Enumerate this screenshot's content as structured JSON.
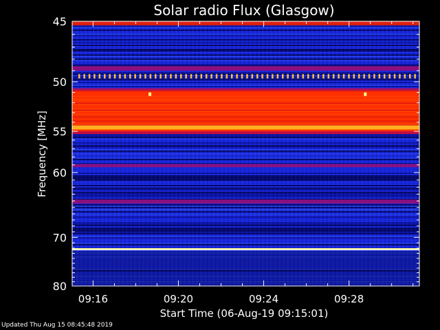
{
  "chart_data": {
    "type": "heatmap",
    "title": "Solar radio Flux (Glasgow)",
    "ylabel": "Frequency [MHz]",
    "xlabel": "Start Time (06-Aug-19 09:15:01)",
    "y_ticks": [
      45,
      50,
      55,
      60,
      70,
      80
    ],
    "x_ticks": [
      "09:16",
      "09:20",
      "09:24",
      "09:28"
    ],
    "x_tick_minutes": [
      16,
      20,
      24,
      28
    ],
    "xlim_minutes": [
      15.02,
      31.3
    ],
    "ylim": [
      45,
      80
    ],
    "y_scale": "reciprocal",
    "grid": false,
    "colormap": [
      "#000060",
      "#1428f0",
      "#8a1080",
      "#ff3000",
      "#ffff80"
    ],
    "bands": [
      {
        "freq": [
          45.0,
          45.3
        ],
        "level": "red"
      },
      {
        "freq": [
          48.6,
          49.0
        ],
        "level": "purple"
      },
      {
        "freq": [
          49.3,
          49.7
        ],
        "level": "dotted-yellow"
      },
      {
        "freq": [
          50.8,
          55.0
        ],
        "level": "red-orange"
      },
      {
        "freq": [
          54.3,
          54.8
        ],
        "level": "orange-yellow"
      },
      {
        "freq": [
          58.9,
          59.3
        ],
        "level": "purple"
      },
      {
        "freq": [
          63.8,
          64.4
        ],
        "level": "purple"
      },
      {
        "freq": [
          72.0,
          72.4
        ],
        "level": "yellow"
      }
    ]
  },
  "footer": "Updated Thu Aug 15 08:45:48 2019"
}
